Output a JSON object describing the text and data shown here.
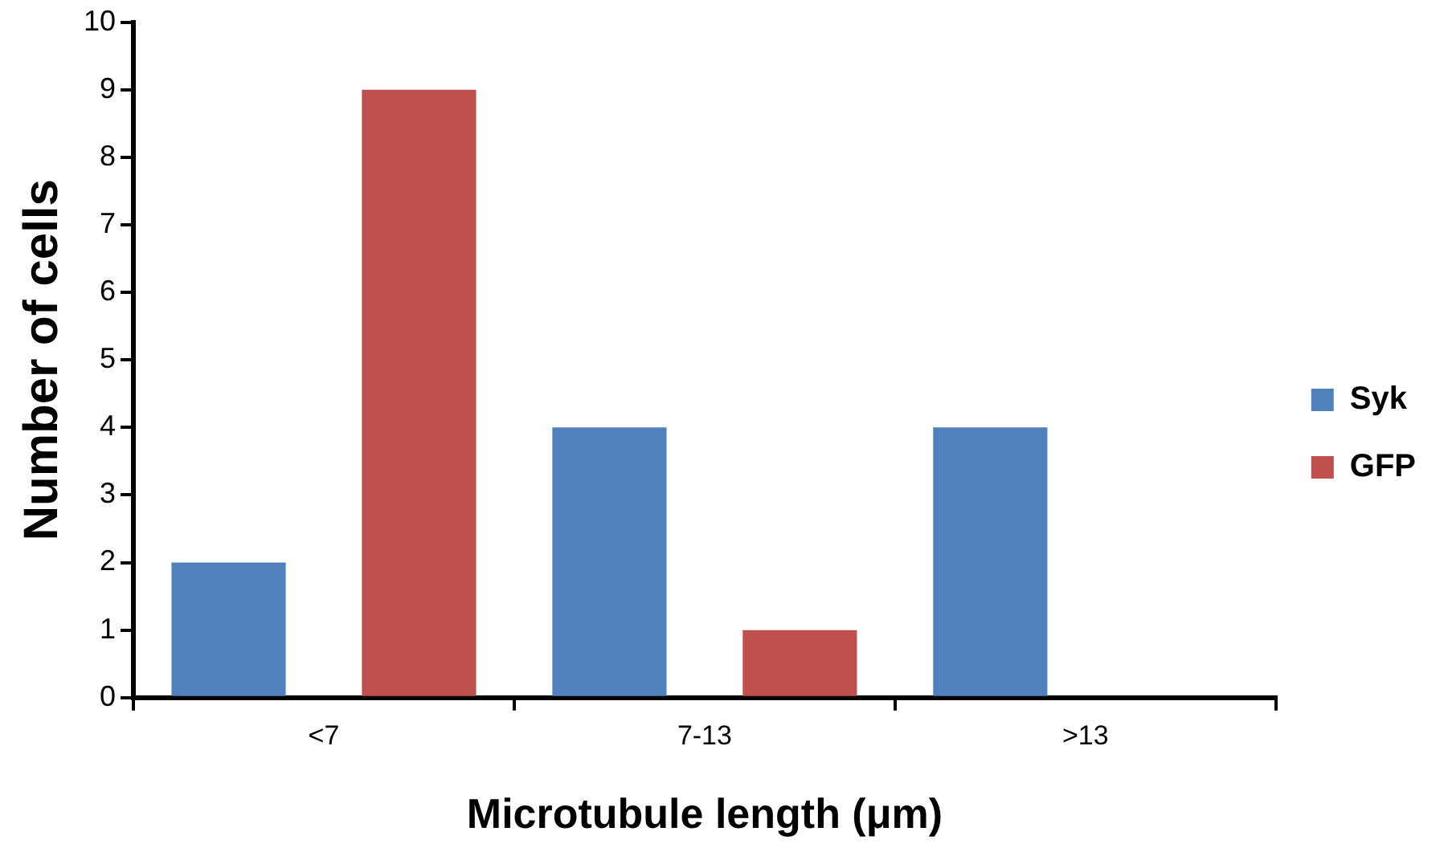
{
  "chart_data": {
    "type": "bar",
    "xlabel": "Microtubule length (μm)",
    "ylabel": "Number of cells",
    "categories": [
      "<7",
      "7-13",
      ">13"
    ],
    "series": [
      {
        "name": "Syk",
        "color": "#4f81bd",
        "values": [
          2,
          4,
          4
        ]
      },
      {
        "name": "GFP",
        "color": "#c0504d",
        "values": [
          9,
          1,
          0
        ]
      }
    ],
    "ylim": [
      0,
      10
    ],
    "yticks": [
      0,
      1,
      2,
      3,
      4,
      5,
      6,
      7,
      8,
      9,
      10
    ],
    "legend": "right"
  }
}
